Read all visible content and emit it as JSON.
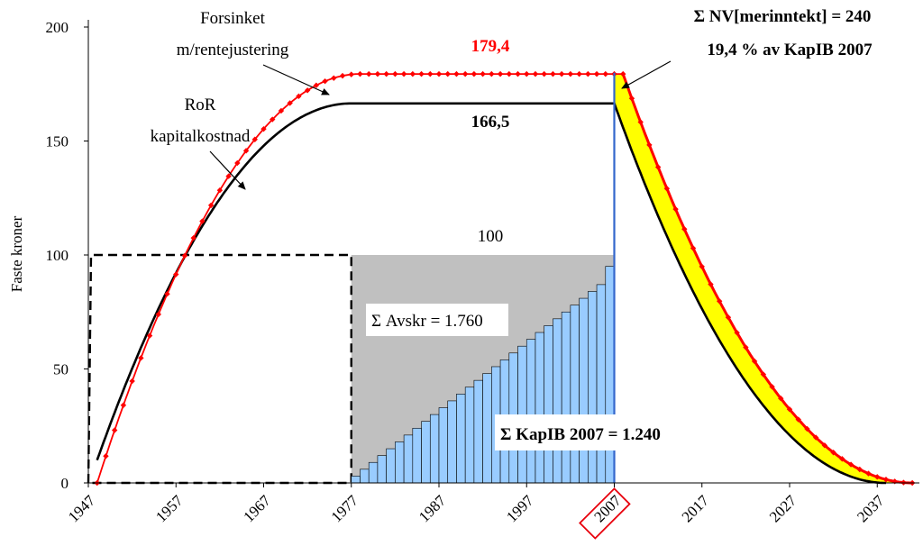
{
  "chart_data": {
    "type": "line",
    "ylabel": "Faste kroner",
    "ylim": [
      0,
      200
    ],
    "xlim": [
      1947,
      2041
    ],
    "y_ticks": [
      "0",
      "50",
      "100",
      "150",
      "200"
    ],
    "x_ticks": [
      "1947",
      "1957",
      "1967",
      "1977",
      "1987",
      "1997",
      "2007",
      "2017",
      "2027",
      "2037"
    ],
    "highlight_tick": "2007",
    "highlight_color": "#e8000b",
    "grid": false,
    "series": [
      {
        "name": "Forsinket m/rentejustering",
        "color": "#ff0000",
        "marker": "diamond",
        "rise": {
          "x_start": 1948,
          "x_end": 1978,
          "y_start": 0,
          "y_end": 179.4
        },
        "plateau": {
          "x_start": 1978,
          "x_end": 2008,
          "y": 179.4
        },
        "decline": {
          "x_start": 2008,
          "x_end": 2041,
          "y_start": 179.4,
          "y_end": 0
        }
      },
      {
        "name": "RoR kapitalkostnad",
        "color": "#000000",
        "rise": {
          "x_start": 1948,
          "x_end": 1977,
          "y_start": 10,
          "y_end": 166.5
        },
        "plateau": {
          "x_start": 1977,
          "x_end": 2007,
          "y": 166.5
        },
        "decline": {
          "x_start": 2007,
          "x_end": 2038,
          "y_start": 166.5,
          "y_end": 0
        }
      }
    ],
    "investment_box": {
      "x_start": 1947,
      "x_end": 1977,
      "y": 100,
      "style": "dashed"
    },
    "depreciation_area": {
      "x_start": 1977,
      "x_end": 2007,
      "y": 100,
      "color": "#c0c0c0"
    },
    "depreciation_bars": {
      "x_start": 1977,
      "x_end": 2007,
      "count": 30,
      "y_min": 0,
      "y_max": 95,
      "color": "#99ccff"
    },
    "vertical_line": {
      "x": 2007,
      "color": "#3366cc"
    },
    "fill_between": {
      "from_series": "RoR kapitalkostnad",
      "to_series": "Forsinket m/rentejustering",
      "x_start": 2007,
      "x_end": 2041,
      "color": "#ffff00"
    },
    "labels": {
      "forsinket_line1": "Forsinket",
      "forsinket_line2": "m/rentejustering",
      "ror_line1": "RoR",
      "ror_line2": "kapitalkostnad",
      "value_179": "179,4",
      "value_166": "166,5",
      "value_100": "100",
      "avskr": "Σ Avskr = 1.760",
      "kapib": "Σ KapIB 2007 = 1.240",
      "nv_line1": "Σ NV[merinntekt] = 240",
      "nv_line2": "19,4 % av KapIB 2007"
    }
  }
}
